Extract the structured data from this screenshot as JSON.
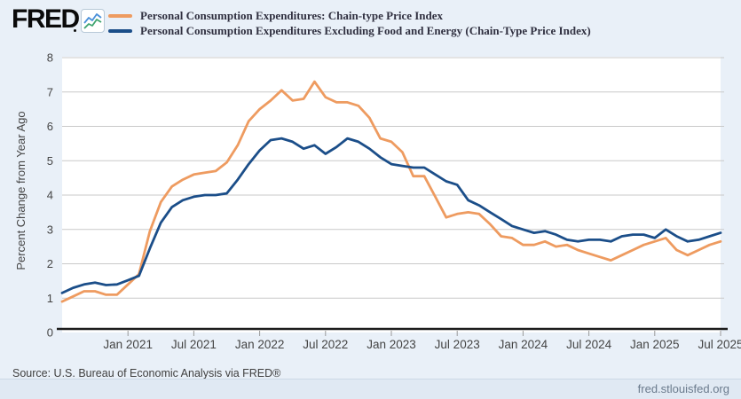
{
  "brand": {
    "logo_text": "FRED"
  },
  "legend": {
    "series": [
      {
        "label": "Personal Consumption Expenditures: Chain-type Price Index"
      },
      {
        "label": "Personal Consumption Expenditures Excluding Food and Energy (Chain-Type Price Index)"
      }
    ]
  },
  "footer": {
    "source": "Source: U.S. Bureau of Economic Analysis via FRED®",
    "site": "fred.stlouisfed.org"
  },
  "chart_data": {
    "type": "line",
    "title": "",
    "xlabel": "",
    "ylabel": "Percent Change from Year Ago",
    "ylim": [
      0,
      8
    ],
    "y_ticks": [
      0,
      1,
      2,
      3,
      4,
      5,
      6,
      7,
      8
    ],
    "grid": true,
    "legend_position": "top",
    "frequency": "monthly",
    "x": [
      "Jul 2020",
      "Aug 2020",
      "Sep 2020",
      "Oct 2020",
      "Nov 2020",
      "Dec 2020",
      "Jan 2021",
      "Feb 2021",
      "Mar 2021",
      "Apr 2021",
      "May 2021",
      "Jun 2021",
      "Jul 2021",
      "Aug 2021",
      "Sep 2021",
      "Oct 2021",
      "Nov 2021",
      "Dec 2021",
      "Jan 2022",
      "Feb 2022",
      "Mar 2022",
      "Apr 2022",
      "May 2022",
      "Jun 2022",
      "Jul 2022",
      "Aug 2022",
      "Sep 2022",
      "Oct 2022",
      "Nov 2022",
      "Dec 2022",
      "Jan 2023",
      "Feb 2023",
      "Mar 2023",
      "Apr 2023",
      "May 2023",
      "Jun 2023",
      "Jul 2023",
      "Aug 2023",
      "Sep 2023",
      "Oct 2023",
      "Nov 2023",
      "Dec 2023",
      "Jan 2024",
      "Feb 2024",
      "Mar 2024",
      "Apr 2024",
      "May 2024",
      "Jun 2024",
      "Jul 2024",
      "Aug 2024",
      "Sep 2024",
      "Oct 2024",
      "Nov 2024",
      "Dec 2024",
      "Jan 2025",
      "Feb 2025",
      "Mar 2025",
      "Apr 2025",
      "May 2025",
      "Jun 2025",
      "Jul 2025"
    ],
    "x_tick_labels": [
      "Jan 2021",
      "Jul 2021",
      "Jan 2022",
      "Jul 2022",
      "Jan 2023",
      "Jul 2023",
      "Jan 2024",
      "Jul 2024",
      "Jan 2025",
      "Jul 2025"
    ],
    "x_tick_indices": [
      6,
      12,
      18,
      24,
      30,
      36,
      42,
      48,
      54,
      60
    ],
    "series": [
      {
        "name": "Personal Consumption Expenditures: Chain-type Price Index",
        "color": "#ee9b60",
        "values": [
          0.9,
          1.05,
          1.2,
          1.2,
          1.1,
          1.1,
          1.4,
          1.7,
          2.95,
          3.8,
          4.25,
          4.45,
          4.6,
          4.65,
          4.7,
          4.95,
          5.45,
          6.15,
          6.5,
          6.75,
          7.05,
          6.75,
          6.8,
          7.3,
          6.85,
          6.7,
          6.7,
          6.6,
          6.25,
          5.65,
          5.55,
          5.25,
          4.55,
          4.55,
          3.95,
          3.35,
          3.45,
          3.5,
          3.45,
          3.15,
          2.8,
          2.75,
          2.55,
          2.55,
          2.65,
          2.5,
          2.55,
          2.4,
          2.3,
          2.2,
          2.1,
          2.25,
          2.4,
          2.55,
          2.65,
          2.75,
          2.4,
          2.25,
          2.4,
          2.55,
          2.65
        ]
      },
      {
        "name": "Personal Consumption Expenditures Excluding Food and Energy (Chain-Type Price Index)",
        "color": "#1b4e89",
        "values": [
          1.15,
          1.3,
          1.4,
          1.45,
          1.38,
          1.4,
          1.52,
          1.65,
          2.45,
          3.2,
          3.65,
          3.85,
          3.95,
          4.0,
          4.0,
          4.05,
          4.45,
          4.9,
          5.3,
          5.6,
          5.65,
          5.55,
          5.35,
          5.45,
          5.2,
          5.4,
          5.65,
          5.55,
          5.35,
          5.1,
          4.9,
          4.85,
          4.8,
          4.8,
          4.6,
          4.4,
          4.3,
          3.85,
          3.7,
          3.5,
          3.3,
          3.1,
          3.0,
          2.9,
          2.95,
          2.85,
          2.7,
          2.65,
          2.7,
          2.7,
          2.65,
          2.8,
          2.85,
          2.85,
          2.75,
          3.0,
          2.8,
          2.65,
          2.7,
          2.8,
          2.9
        ]
      }
    ]
  }
}
